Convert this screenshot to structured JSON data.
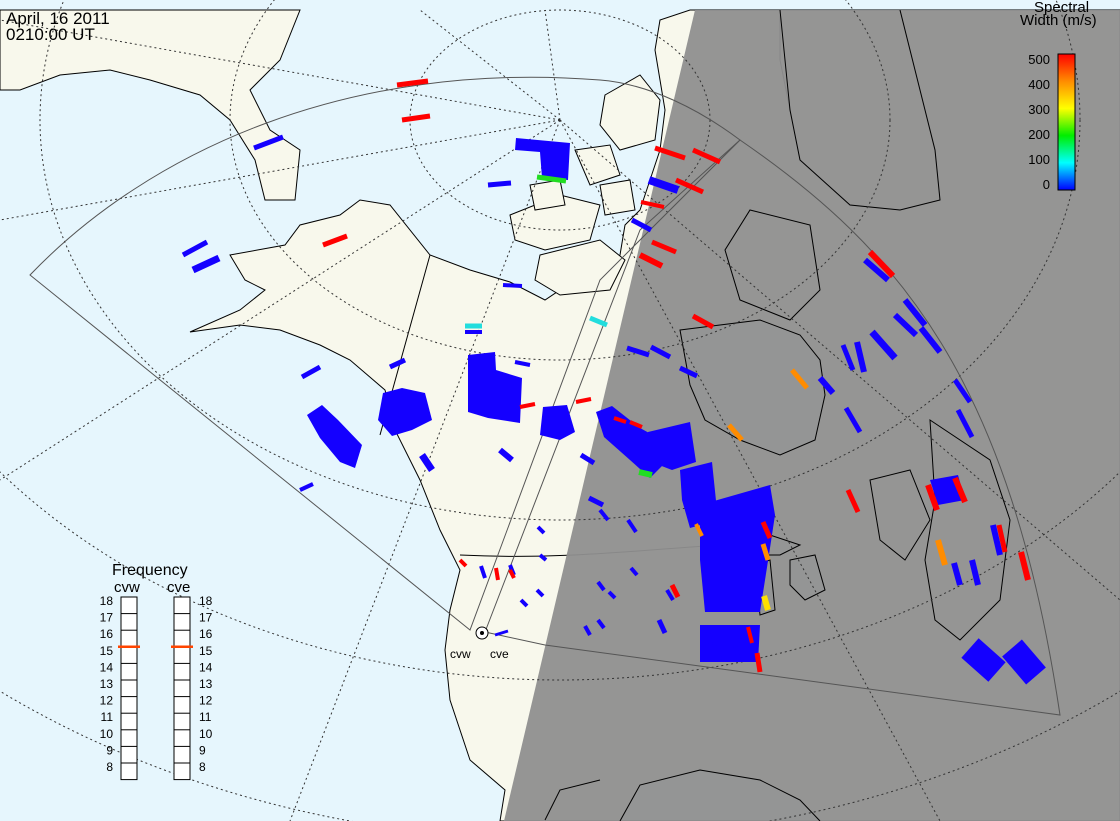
{
  "header": {
    "date": "April, 16 2011",
    "time": "0210:00 UT"
  },
  "colorbar": {
    "title_line1": "Spectral",
    "title_line2": "Width (m/s)",
    "ticks": [
      "500",
      "400",
      "300",
      "200",
      "100",
      "0"
    ],
    "colors": [
      "#ff0000",
      "#ff8c00",
      "#ffff00",
      "#00ee00",
      "#00ffff",
      "#0000ff"
    ]
  },
  "radars": [
    {
      "name": "cvw"
    },
    {
      "name": "cve"
    }
  ],
  "frequency": {
    "title": "Frequency",
    "col_left": "cvw",
    "col_right": "cve",
    "levels": [
      "18",
      "17",
      "16",
      "15",
      "14",
      "13",
      "12",
      "11",
      "10",
      "9",
      "8"
    ],
    "cvw_value": 15.5,
    "cve_value": 15.5,
    "marker_color": "#ff4400"
  },
  "colors": {
    "ocean": "#e6f6fd",
    "land": "#f8f8ec",
    "night": "#8f8f8f",
    "beam_blue": "#1400ff",
    "beam_red": "#ff0000",
    "beam_orange": "#ff8c00",
    "beam_yellow": "#ffe000",
    "beam_green": "#22dd22",
    "beam_cyan": "#22dddd"
  }
}
